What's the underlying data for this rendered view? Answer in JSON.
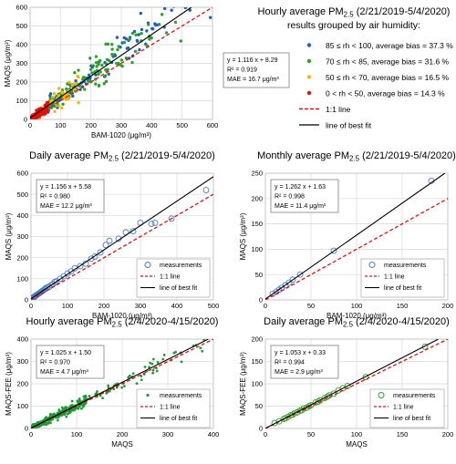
{
  "chart_data": [
    {
      "id": "p1",
      "type": "scatter",
      "title": "",
      "xlabel": "BAM-1020 (μg/m³)",
      "ylabel": "MAQS (μg/m³)",
      "xlim": [
        0,
        600
      ],
      "ylim": [
        0,
        600
      ],
      "xticks": [
        0,
        100,
        200,
        300,
        400,
        500,
        600
      ],
      "yticks": [
        0,
        100,
        200,
        300,
        400,
        500,
        600
      ],
      "stats": [
        "y = 1.116 x + 8.29",
        "R² = 0.919",
        "MAE = 16.7 μg/m³"
      ],
      "fit": {
        "slope": 1.116,
        "intercept": 8.29
      },
      "series": [
        {
          "name": "85 ≤ rh < 100, average bias = 37.3 %",
          "color": "#1f5fbf",
          "seed": 11,
          "bands": [
            [
              60,
              600,
              120
            ]
          ],
          "sx": 0.14,
          "sy": 1.22
        },
        {
          "name": "70 ≤ rh < 85, average bias = 31.6 %",
          "color": "#2ca02c",
          "seed": 23,
          "bands": [
            [
              20,
              250,
              110
            ],
            [
              250,
              580,
              40
            ]
          ],
          "sx": 0.16,
          "sy": 1.2
        },
        {
          "name": "50 ≤ rh < 70, average bias = 16.5 %",
          "color": "#f5b800",
          "seed": 37,
          "bands": [
            [
              5,
              160,
              90
            ]
          ],
          "sx": 0.2,
          "sy": 1.12
        },
        {
          "name": "0 < rh < 50, average bias = 14.3 %",
          "color": "#e01010",
          "seed": 41,
          "bands": [
            [
              1,
              60,
              130
            ]
          ],
          "sx": 0.18,
          "sy": 1.08
        }
      ]
    },
    {
      "id": "p2",
      "type": "scatter",
      "title": "Daily average PM₂.₅ (2/21/2019-5/4/2020)",
      "xlabel": "BAM-1020 (μg/m³)",
      "ylabel": "MAQS (μg/m³)",
      "xlim": [
        0,
        500
      ],
      "ylim": [
        0,
        600
      ],
      "xticks": [
        0,
        100,
        200,
        300,
        400,
        500
      ],
      "yticks": [
        0,
        100,
        200,
        300,
        400,
        500,
        600
      ],
      "stats": [
        "y = 1.156 x + 5.58",
        "R² = 0.980",
        "MAE = 12.2 μg/m³"
      ],
      "fit": {
        "slope": 1.156,
        "intercept": 5.58
      },
      "legend": [
        "measurements",
        "1:1 line",
        "line of best fit"
      ],
      "series": [
        {
          "name": "measurements",
          "marker": "open-circle",
          "color": "#4a7ebf",
          "x": [
            3,
            6,
            8,
            10,
            12,
            14,
            16,
            18,
            20,
            22,
            25,
            28,
            30,
            32,
            35,
            38,
            40,
            45,
            50,
            55,
            60,
            65,
            70,
            80,
            90,
            100,
            110,
            120,
            135,
            150,
            165,
            175,
            190,
            205,
            215,
            240,
            260,
            280,
            300,
            330,
            340,
            385,
            480
          ],
          "y": [
            9,
            12,
            14,
            15,
            19,
            22,
            24,
            26,
            29,
            31,
            35,
            38,
            41,
            44,
            47,
            52,
            55,
            60,
            62,
            70,
            75,
            85,
            88,
            100,
            112,
            125,
            135,
            150,
            160,
            172,
            195,
            205,
            225,
            260,
            280,
            290,
            320,
            325,
            365,
            360,
            365,
            385,
            520
          ]
        }
      ]
    },
    {
      "id": "p3",
      "type": "scatter",
      "title": "Monthly average PM₂.₅ (2/21/2019-5/4/2020)",
      "xlabel": "BAM-1020 (μg/m³)",
      "ylabel": "MAQS (μg/m³)",
      "xlim": [
        0,
        200
      ],
      "ylim": [
        0,
        250
      ],
      "xticks": [
        0,
        50,
        100,
        150,
        200
      ],
      "yticks": [
        0,
        50,
        100,
        150,
        200,
        250
      ],
      "stats": [
        "y = 1.262 x + 1.63",
        "R² = 0.998",
        "MAE = 11.4 μg/m³"
      ],
      "fit": {
        "slope": 1.262,
        "intercept": 1.63
      },
      "legend": [
        "measurements",
        "1:1 line",
        "line of best fit"
      ],
      "series": [
        {
          "name": "measurements",
          "marker": "open-circle",
          "color": "#4a7ebf",
          "x": [
            8,
            12,
            15,
            18,
            22,
            26,
            30,
            38,
            75,
            182
          ],
          "y": [
            12,
            16,
            20,
            24,
            29,
            34,
            40,
            50,
            97,
            235
          ]
        }
      ]
    },
    {
      "id": "p4",
      "type": "scatter",
      "title": "Hourly average PM₂.₅ (2/4/2020-4/15/2020)",
      "xlabel": "MAQS",
      "ylabel": "MAQS-FEE (μg/m³)",
      "xlim": [
        0,
        400
      ],
      "ylim": [
        0,
        400
      ],
      "xticks": [
        0,
        100,
        200,
        300,
        400
      ],
      "yticks": [
        0,
        100,
        200,
        300,
        400
      ],
      "stats": [
        "y = 1.025 x + 1.50",
        "R² = 0.970",
        "MAE = 4.7 μg/m³"
      ],
      "fit": {
        "slope": 1.025,
        "intercept": 1.5
      },
      "legend": [
        "measurements",
        "1:1 line",
        "line of best fit"
      ],
      "series": [
        {
          "name": "measurements",
          "marker": "filled-dot",
          "color": "#1f9a3a",
          "seed": 53,
          "bands": [
            [
              2,
              120,
              320
            ],
            [
              120,
              380,
              60
            ]
          ],
          "sx": 0.05,
          "sy": 1.03
        }
      ]
    },
    {
      "id": "p5",
      "type": "scatter",
      "title": "Daily average PM₂.₅ (2/4/2020-4/15/2020)",
      "xlabel": "MAQS",
      "ylabel": "MAQS-FEE (μg/m³)",
      "xlim": [
        0,
        200
      ],
      "ylim": [
        0,
        200
      ],
      "xticks": [
        0,
        50,
        100,
        150,
        200
      ],
      "yticks": [
        0,
        50,
        100,
        150,
        200
      ],
      "stats": [
        "y = 1.053 x + 0.33",
        "R² = 0.994",
        "MAE = 2.9 μg/m³"
      ],
      "fit": {
        "slope": 1.053,
        "intercept": 0.33
      },
      "legend": [
        "measurements",
        "1:1 line",
        "line of best fit"
      ],
      "series": [
        {
          "name": "measurements",
          "marker": "open-circle",
          "color": "#2ca02c",
          "x": [
            10,
            15,
            20,
            22,
            25,
            28,
            30,
            32,
            35,
            38,
            40,
            42,
            45,
            48,
            50,
            55,
            58,
            60,
            65,
            68,
            70,
            75,
            80,
            85,
            90,
            110,
            175
          ],
          "y": [
            12,
            16,
            21,
            23,
            26,
            30,
            31,
            34,
            36,
            40,
            41,
            45,
            46,
            50,
            52,
            58,
            60,
            63,
            68,
            71,
            74,
            78,
            85,
            90,
            95,
            115,
            183
          ]
        }
      ]
    }
  ],
  "legend_panel": {
    "title": "Hourly average PM₂.₅ (2/21/2019-5/4/2020)",
    "subtitle": "results grouped by air humidity:",
    "items": [
      {
        "label": "85 ≤ rh < 100, average bias = 37.3 %",
        "color": "#1f5fbf",
        "kind": "dot"
      },
      {
        "label": "70 ≤ rh < 85, average bias = 31.6 %",
        "color": "#2ca02c",
        "kind": "dot"
      },
      {
        "label": "50 ≤ rh < 70, average bias = 16.5 %",
        "color": "#f5b800",
        "kind": "dot"
      },
      {
        "label": "0 < rh < 50, average bias = 14.3 %",
        "color": "#e01010",
        "kind": "dot"
      },
      {
        "label": "1:1 line",
        "color": "#e01010",
        "kind": "dash"
      },
      {
        "label": "line of best fit",
        "color": "#000000",
        "kind": "line"
      }
    ]
  }
}
